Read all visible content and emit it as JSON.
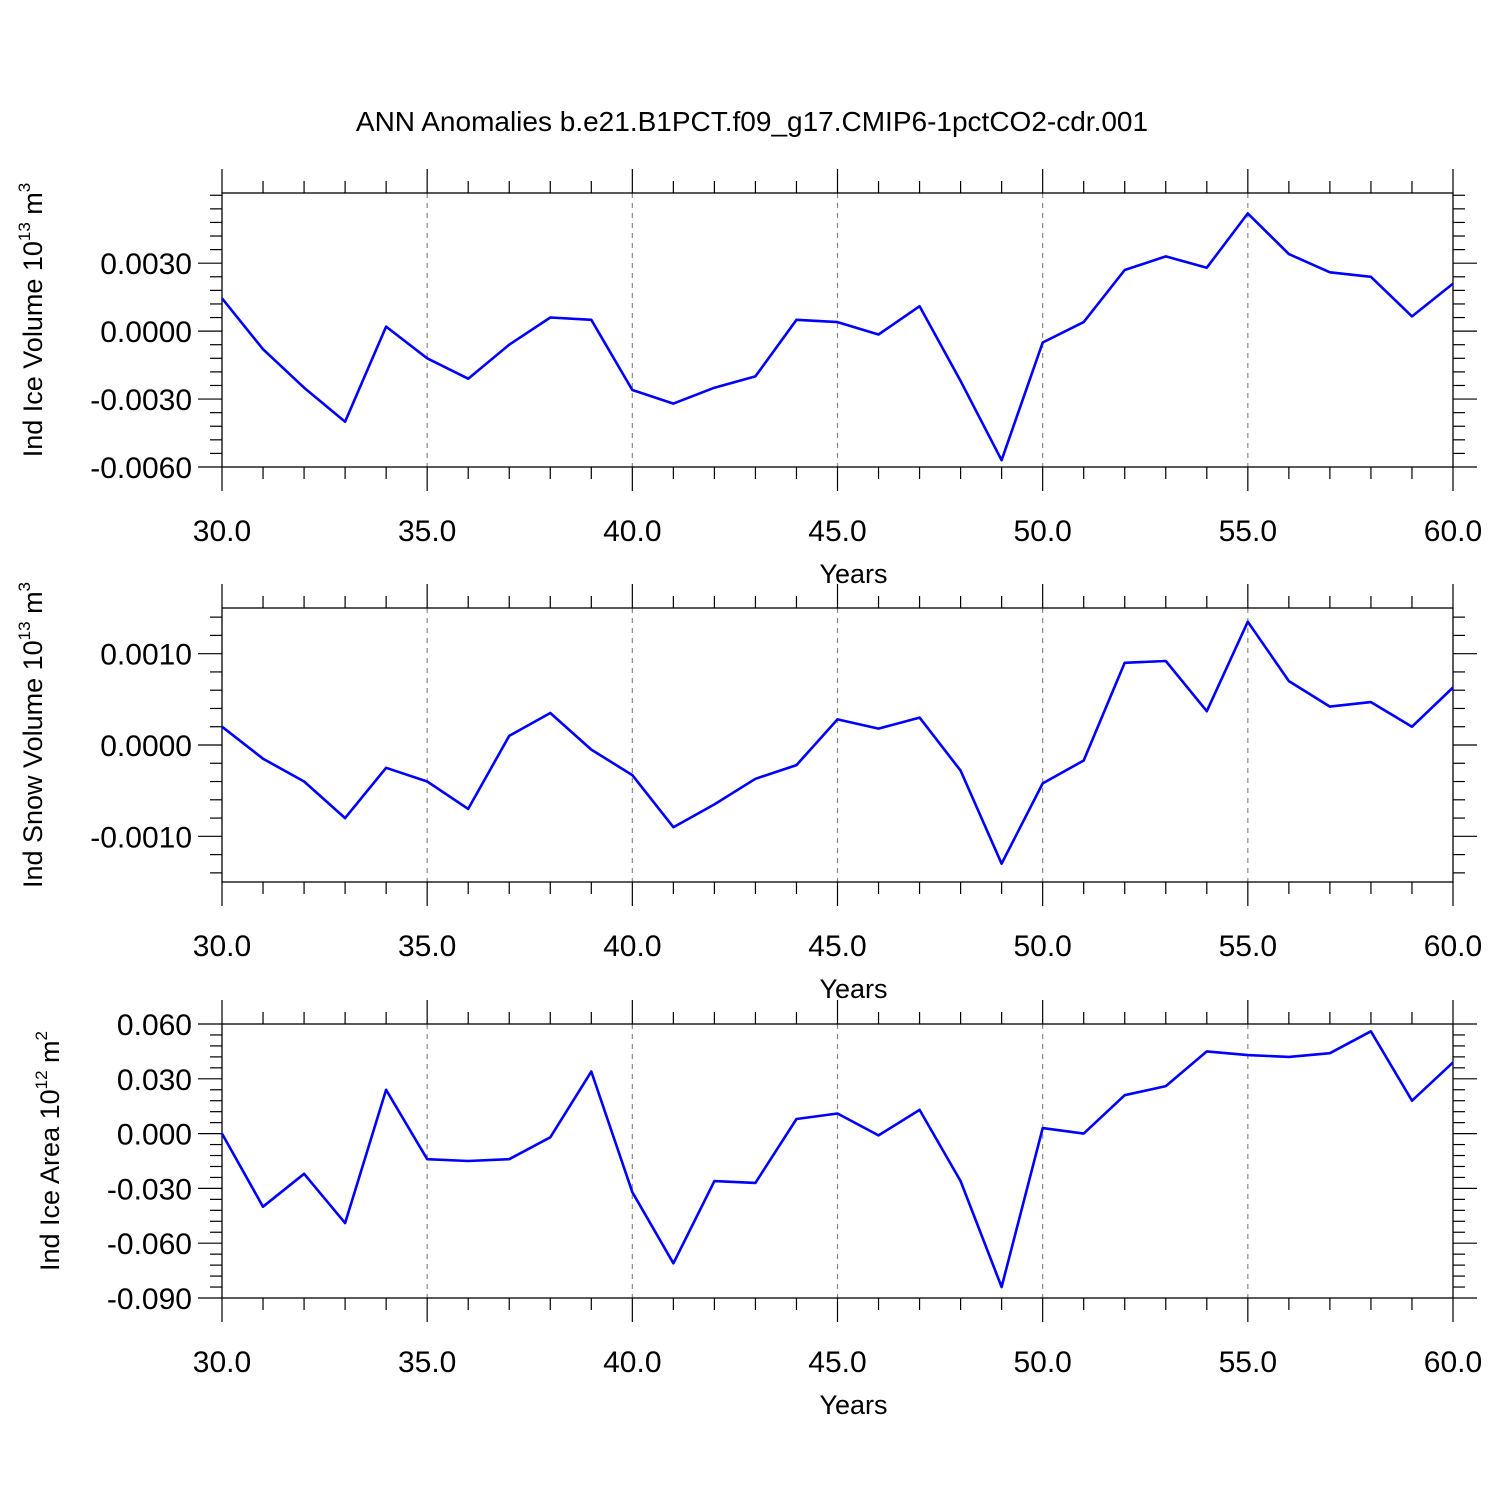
{
  "figure": {
    "title": "ANN Anomalies b.e21.B1PCT.f09_g17.CMIP6-1pctCO2-cdr.001"
  },
  "chart_data": [
    {
      "type": "line",
      "ylabel": {
        "main": "Ind Ice Volume 10",
        "sup": "13",
        "unit": " m",
        "unit_sup": "3"
      },
      "xlabel": "Years",
      "xlim": [
        30,
        60
      ],
      "ylim": [
        -0.006,
        0.0061
      ],
      "xticks": [
        30,
        35,
        40,
        45,
        50,
        55,
        60
      ],
      "xtick_labels": [
        "30.0",
        "35.0",
        "40.0",
        "45.0",
        "50.0",
        "55.0",
        "60.0"
      ],
      "yticks": [
        -0.006,
        -0.003,
        0.0,
        0.003
      ],
      "ytick_labels": [
        "-0.0060",
        "-0.0030",
        "0.0000",
        "0.0030"
      ],
      "grid": "vertical dashed",
      "line_color": "#0000ff",
      "x": [
        30,
        31,
        32,
        33,
        34,
        35,
        36,
        37,
        38,
        39,
        40,
        41,
        42,
        43,
        44,
        45,
        46,
        47,
        48,
        49,
        50,
        51,
        52,
        53,
        54,
        55,
        56,
        57,
        58,
        59,
        60
      ],
      "values": [
        0.00145,
        -0.0008,
        -0.0025,
        -0.004,
        0.0002,
        -0.0012,
        -0.0021,
        -0.0006,
        0.0006,
        0.0005,
        -0.0026,
        -0.0032,
        -0.0025,
        -0.002,
        0.0005,
        0.0004,
        -0.00015,
        0.0011,
        -0.0022,
        -0.0057,
        -0.0005,
        0.0004,
        0.0027,
        0.0033,
        0.0028,
        0.0052,
        0.0034,
        0.0026,
        0.0024,
        0.00065,
        0.0021
      ]
    },
    {
      "type": "line",
      "ylabel": {
        "main": "Ind Snow Volume 10",
        "sup": "13",
        "unit": " m",
        "unit_sup": "3"
      },
      "xlabel": "Years",
      "xlim": [
        30,
        60
      ],
      "ylim": [
        -0.0015,
        0.0015
      ],
      "xticks": [
        30,
        35,
        40,
        45,
        50,
        55,
        60
      ],
      "xtick_labels": [
        "30.0",
        "35.0",
        "40.0",
        "45.0",
        "50.0",
        "55.0",
        "60.0"
      ],
      "yticks": [
        -0.001,
        0.0,
        0.001
      ],
      "ytick_labels": [
        "-0.0010",
        "0.0000",
        "0.0010"
      ],
      "grid": "vertical dashed",
      "line_color": "#0000ff",
      "x": [
        30,
        31,
        32,
        33,
        34,
        35,
        36,
        37,
        38,
        39,
        40,
        41,
        42,
        43,
        44,
        45,
        46,
        47,
        48,
        49,
        50,
        51,
        52,
        53,
        54,
        55,
        56,
        57,
        58,
        59,
        60
      ],
      "values": [
        0.0002,
        -0.00015,
        -0.0004,
        -0.0008,
        -0.00025,
        -0.0004,
        -0.0007,
        0.0001,
        0.00035,
        -5e-05,
        -0.00033,
        -0.0009,
        -0.00065,
        -0.00037,
        -0.00022,
        0.00028,
        0.00018,
        0.0003,
        -0.00028,
        -0.0013,
        -0.00042,
        -0.00017,
        0.0009,
        0.00092,
        0.00037,
        0.00135,
        0.0007,
        0.00042,
        0.00047,
        0.0002,
        0.00063
      ]
    },
    {
      "type": "line",
      "ylabel": {
        "main": "Ind Ice Area 10",
        "sup": "12",
        "unit": " m",
        "unit_sup": "2"
      },
      "xlabel": "Years",
      "xlim": [
        30,
        60
      ],
      "ylim": [
        -0.09,
        0.06
      ],
      "xticks": [
        30,
        35,
        40,
        45,
        50,
        55,
        60
      ],
      "xtick_labels": [
        "30.0",
        "35.0",
        "40.0",
        "45.0",
        "50.0",
        "55.0",
        "60.0"
      ],
      "yticks": [
        -0.09,
        -0.06,
        -0.03,
        0.0,
        0.03,
        0.06
      ],
      "ytick_labels": [
        "-0.090",
        "-0.060",
        "-0.030",
        "0.000",
        "0.030",
        "0.060"
      ],
      "grid": "vertical dashed",
      "line_color": "#0000ff",
      "x": [
        30,
        31,
        32,
        33,
        34,
        35,
        36,
        37,
        38,
        39,
        40,
        41,
        42,
        43,
        44,
        45,
        46,
        47,
        48,
        49,
        50,
        51,
        52,
        53,
        54,
        55,
        56,
        57,
        58,
        59,
        60
      ],
      "values": [
        0.0,
        -0.04,
        -0.022,
        -0.049,
        0.024,
        -0.014,
        -0.015,
        -0.014,
        -0.002,
        0.034,
        -0.032,
        -0.071,
        -0.026,
        -0.027,
        0.008,
        0.011,
        -0.001,
        0.013,
        -0.026,
        -0.084,
        0.003,
        0.0,
        0.021,
        0.026,
        0.045,
        0.043,
        0.042,
        0.044,
        0.056,
        0.018,
        0.039
      ]
    }
  ]
}
